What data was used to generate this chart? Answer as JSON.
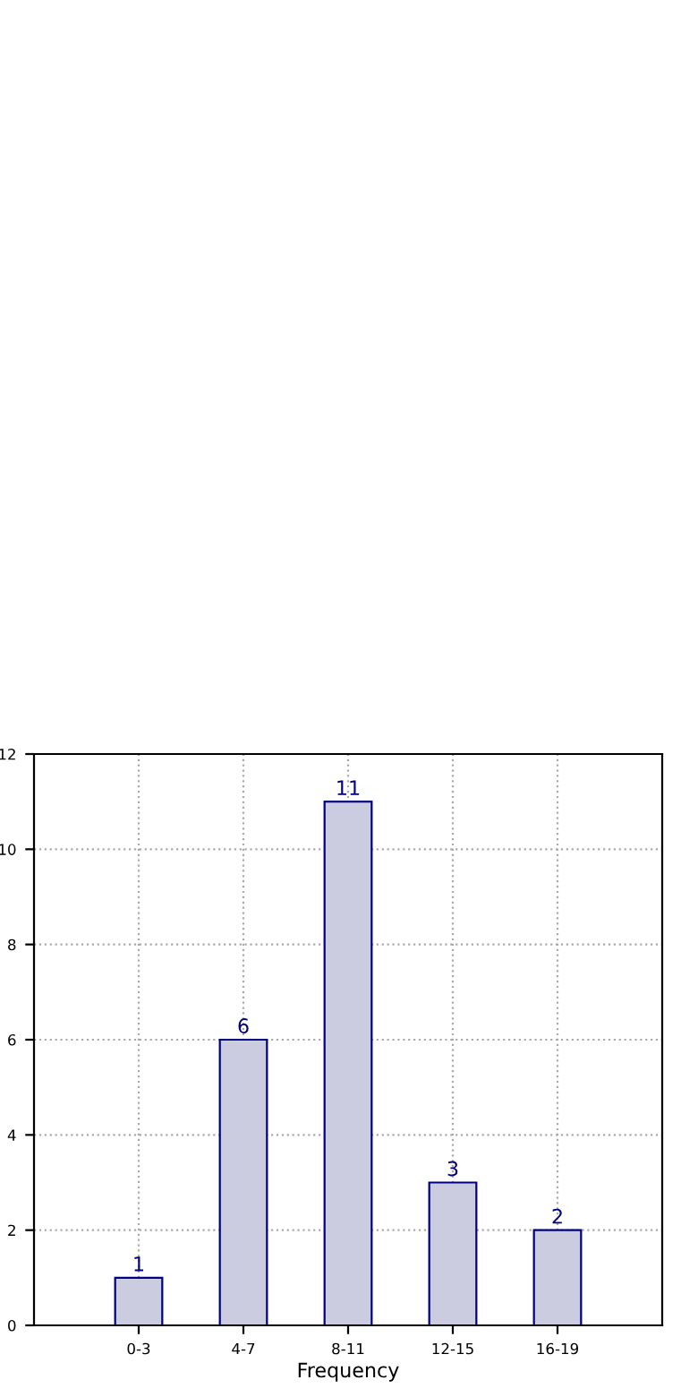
{
  "chart_data": {
    "type": "bar",
    "xlabel": "Frequency",
    "categories": [
      "0-3",
      "4-7",
      "8-11",
      "12-15",
      "16-19"
    ],
    "values": [
      1,
      6,
      11,
      3,
      2
    ],
    "color": "#ccccE0",
    "ylim": [
      0,
      12
    ],
    "yticks": [
      0,
      2,
      4,
      6,
      8,
      10,
      12
    ],
    "grid": true,
    "data_labels": true
  }
}
